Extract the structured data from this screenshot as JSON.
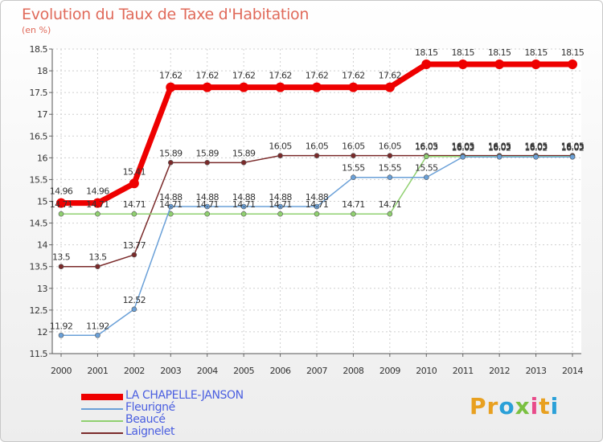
{
  "title": "Evolution du Taux de Taxe d'Habitation",
  "unit": "(en %)",
  "logo": {
    "letters": [
      "P",
      "r",
      "o",
      "x",
      "i",
      "t",
      "i"
    ],
    "colors": [
      "#e8a020",
      "#e8a020",
      "#2aa0d8",
      "#7ac040",
      "#e84b8a",
      "#e8a020",
      "#2aa0d8"
    ]
  },
  "chart_data": {
    "type": "line",
    "x": [
      "2000",
      "2001",
      "2002",
      "2003",
      "2004",
      "2005",
      "2006",
      "2007",
      "2008",
      "2009",
      "2010",
      "2011",
      "2012",
      "2013",
      "2014"
    ],
    "ylim": [
      11.5,
      18.5
    ],
    "yticks": [
      "11.5",
      "12",
      "12.5",
      "13",
      "13.5",
      "14",
      "14.5",
      "15",
      "15.5",
      "16",
      "16.5",
      "17",
      "17.5",
      "18",
      "18.5"
    ],
    "grid": true,
    "legend_position": "bottom-left",
    "series": [
      {
        "name": "LA CHAPELLE-JANSON",
        "color": "#ee0000",
        "values": [
          14.96,
          14.96,
          15.41,
          17.62,
          17.62,
          17.62,
          17.62,
          17.62,
          17.62,
          17.62,
          18.15,
          18.15,
          18.15,
          18.15,
          18.15
        ],
        "labels": [
          "14.96",
          "14.96",
          "15.41",
          "17.62",
          "17.62",
          "17.62",
          "17.62",
          "17.62",
          "17.62",
          "17.62",
          "18.15",
          "18.15",
          "18.15",
          "18.15",
          "18.15"
        ]
      },
      {
        "name": "Fleurigné",
        "color": "#6aa0d8",
        "values": [
          11.92,
          11.92,
          12.52,
          14.88,
          14.88,
          14.88,
          14.88,
          14.88,
          15.55,
          15.55,
          15.55,
          16.02,
          16.02,
          16.02,
          16.02
        ],
        "labels": [
          "11.92",
          "11.92",
          "12.52",
          "14.88",
          "14.88",
          "14.88",
          "14.88",
          "14.88",
          "15.55",
          "15.55",
          "15.55",
          "16.02",
          "16.02",
          "16.02",
          "16.02"
        ]
      },
      {
        "name": "Beaucé",
        "color": "#90d070",
        "values": [
          14.71,
          14.71,
          14.71,
          14.71,
          14.71,
          14.71,
          14.71,
          14.71,
          14.71,
          14.71,
          16.03,
          16.03,
          16.03,
          16.03,
          16.03
        ],
        "labels": [
          "14.71",
          "14.71",
          "14.71",
          "14.71",
          "14.71",
          "14.71",
          "14.71",
          "14.71",
          "14.71",
          "14.71",
          "16.03",
          "16.03",
          "16.03",
          "16.03",
          "16.03"
        ]
      },
      {
        "name": "Laignelet",
        "color": "#7a2a2a",
        "values": [
          13.5,
          13.5,
          13.77,
          15.89,
          15.89,
          15.89,
          16.05,
          16.05,
          16.05,
          16.05,
          16.05,
          16.05,
          16.05,
          16.05,
          16.05
        ],
        "labels": [
          "13.5",
          "13.5",
          "13.77",
          "15.89",
          "15.89",
          "15.89",
          "16.05",
          "16.05",
          "16.05",
          "16.05",
          "16.05",
          "16.05",
          "16.05",
          "16.05",
          "16.05"
        ]
      }
    ]
  }
}
